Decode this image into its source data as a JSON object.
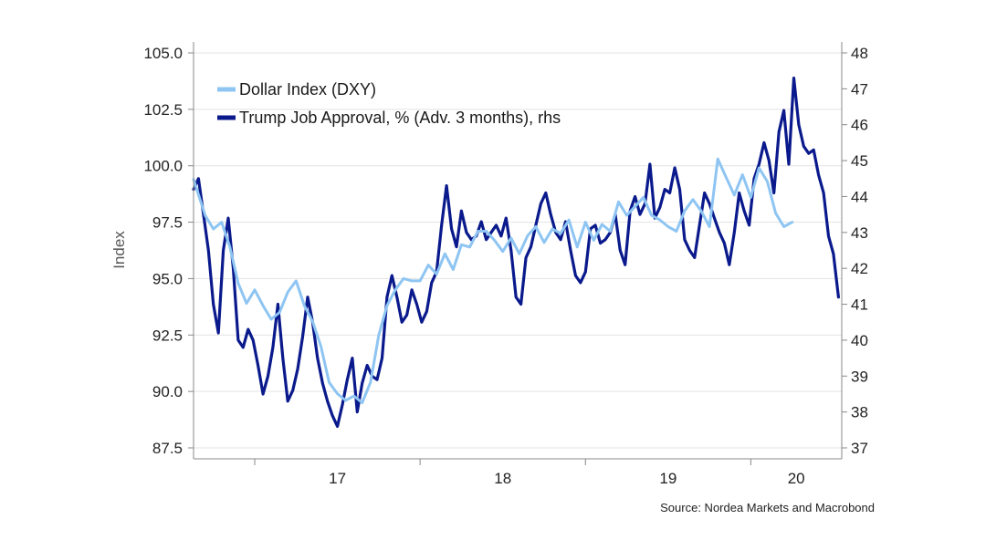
{
  "chart_data": {
    "type": "line",
    "title": "",
    "ylabel": "Index",
    "y2label": "",
    "ylim": [
      87.5,
      105
    ],
    "y_ticks": [
      "105.0",
      "102.5",
      "100.0",
      "97.5",
      "95.0",
      "92.5",
      "90.0",
      "87.5"
    ],
    "y2lim": [
      37,
      48
    ],
    "y2_ticks": [
      "48",
      "47",
      "46",
      "45",
      "44",
      "43",
      "42",
      "41",
      "40",
      "39",
      "38",
      "37"
    ],
    "xlim": [
      2016.63,
      2020.55
    ],
    "x_ticks": [
      "17",
      "18",
      "19",
      "20"
    ],
    "grid": true,
    "legend": "top-left",
    "series": [
      {
        "name": "Dollar Index (DXY)",
        "axis": "left",
        "color": "#8EC5F2",
        "x": [
          2016.63,
          2016.7,
          2016.75,
          2016.8,
          2016.85,
          2016.9,
          2016.95,
          2017.0,
          2017.05,
          2017.1,
          2017.15,
          2017.2,
          2017.25,
          2017.3,
          2017.35,
          2017.4,
          2017.45,
          2017.5,
          2017.55,
          2017.6,
          2017.65,
          2017.7,
          2017.75,
          2017.8,
          2017.85,
          2017.9,
          2017.95,
          2018.0,
          2018.05,
          2018.1,
          2018.15,
          2018.2,
          2018.25,
          2018.3,
          2018.35,
          2018.4,
          2018.45,
          2018.5,
          2018.55,
          2018.6,
          2018.65,
          2018.7,
          2018.75,
          2018.8,
          2018.85,
          2018.9,
          2018.95,
          2019.0,
          2019.05,
          2019.1,
          2019.15,
          2019.2,
          2019.25,
          2019.3,
          2019.35,
          2019.4,
          2019.45,
          2019.5,
          2019.55,
          2019.6,
          2019.65,
          2019.7,
          2019.75,
          2019.8,
          2019.85,
          2019.9,
          2019.95,
          2020.0,
          2020.05,
          2020.1,
          2020.15,
          2020.2,
          2020.25
        ],
        "values": [
          99.4,
          97.8,
          97.2,
          97.5,
          96.4,
          94.8,
          93.9,
          94.5,
          93.8,
          93.2,
          93.5,
          94.4,
          94.9,
          93.8,
          93.1,
          92.0,
          90.4,
          89.9,
          89.6,
          89.8,
          89.5,
          90.4,
          92.5,
          93.8,
          94.5,
          95.0,
          94.9,
          94.9,
          95.6,
          95.2,
          96.1,
          95.4,
          96.5,
          96.4,
          97.1,
          97.1,
          96.7,
          96.2,
          96.8,
          96.1,
          96.9,
          97.3,
          96.6,
          97.2,
          97.0,
          97.6,
          96.4,
          97.5,
          96.7,
          97.4,
          97.1,
          98.4,
          97.8,
          98.2,
          98.6,
          97.8,
          97.6,
          97.3,
          97.1,
          98.0,
          98.5,
          98.0,
          97.3,
          100.3,
          99.5,
          98.7,
          99.6,
          98.6,
          99.9,
          99.3,
          97.9,
          97.3,
          97.5
        ]
      },
      {
        "name": "Trump Job Approval, % (Adv. 3 months), rhs",
        "axis": "right",
        "color": "#0A1A8C",
        "x": [
          2016.63,
          2016.66,
          2016.69,
          2016.72,
          2016.75,
          2016.78,
          2016.81,
          2016.84,
          2016.87,
          2016.9,
          2016.93,
          2016.96,
          2016.99,
          2017.02,
          2017.05,
          2017.08,
          2017.11,
          2017.14,
          2017.17,
          2017.2,
          2017.23,
          2017.26,
          2017.29,
          2017.32,
          2017.35,
          2017.38,
          2017.41,
          2017.44,
          2017.47,
          2017.5,
          2017.53,
          2017.56,
          2017.59,
          2017.62,
          2017.65,
          2017.68,
          2017.71,
          2017.74,
          2017.77,
          2017.8,
          2017.83,
          2017.86,
          2017.89,
          2017.92,
          2017.95,
          2017.98,
          2018.01,
          2018.04,
          2018.07,
          2018.1,
          2018.13,
          2018.16,
          2018.19,
          2018.22,
          2018.25,
          2018.28,
          2018.31,
          2018.34,
          2018.37,
          2018.4,
          2018.43,
          2018.46,
          2018.49,
          2018.52,
          2018.55,
          2018.58,
          2018.61,
          2018.64,
          2018.67,
          2018.7,
          2018.73,
          2018.76,
          2018.79,
          2018.82,
          2018.85,
          2018.88,
          2018.91,
          2018.94,
          2018.97,
          2019.0,
          2019.03,
          2019.06,
          2019.09,
          2019.12,
          2019.15,
          2019.18,
          2019.21,
          2019.24,
          2019.27,
          2019.3,
          2019.33,
          2019.36,
          2019.39,
          2019.42,
          2019.45,
          2019.48,
          2019.51,
          2019.54,
          2019.57,
          2019.6,
          2019.63,
          2019.66,
          2019.69,
          2019.72,
          2019.75,
          2019.78,
          2019.81,
          2019.84,
          2019.87,
          2019.9,
          2019.93,
          2019.96,
          2019.99,
          2020.02,
          2020.05,
          2020.08,
          2020.11,
          2020.14,
          2020.17,
          2020.2,
          2020.23,
          2020.26,
          2020.29,
          2020.32,
          2020.35,
          2020.38,
          2020.41,
          2020.44,
          2020.47,
          2020.5,
          2020.53
        ],
        "values": [
          44.2,
          44.5,
          43.5,
          42.5,
          41.0,
          40.2,
          42.5,
          43.4,
          42.0,
          40.0,
          39.8,
          40.3,
          40.0,
          39.3,
          38.5,
          39.0,
          39.8,
          41.0,
          39.5,
          38.3,
          38.6,
          39.2,
          40.1,
          41.2,
          40.5,
          39.5,
          38.8,
          38.3,
          37.9,
          37.6,
          38.2,
          38.9,
          39.5,
          38.0,
          38.8,
          39.3,
          39.0,
          38.9,
          39.5,
          41.2,
          41.8,
          41.2,
          40.5,
          40.7,
          41.4,
          41.0,
          40.5,
          40.8,
          41.6,
          41.9,
          43.2,
          44.3,
          43.1,
          42.6,
          43.6,
          43.0,
          42.8,
          42.9,
          43.3,
          42.8,
          43.0,
          43.2,
          42.9,
          43.4,
          42.5,
          41.2,
          41.0,
          42.3,
          42.6,
          43.2,
          43.8,
          44.1,
          43.5,
          43.0,
          42.8,
          43.3,
          42.5,
          41.8,
          41.6,
          41.9,
          43.1,
          43.2,
          42.7,
          42.8,
          43.0,
          43.5,
          42.5,
          42.1,
          43.6,
          44.0,
          43.5,
          43.8,
          44.9,
          43.4,
          43.7,
          44.2,
          44.1,
          44.8,
          44.2,
          42.8,
          42.5,
          42.3,
          43.2,
          44.1,
          43.8,
          43.4,
          43.0,
          42.7,
          42.1,
          43.0,
          44.1,
          43.6,
          43.2,
          44.5,
          44.9,
          45.5,
          45.0,
          44.1,
          45.8,
          46.4,
          44.9,
          47.3,
          46.0,
          45.4,
          45.2,
          45.3,
          44.6,
          44.1,
          42.9,
          42.4,
          41.2
        ]
      }
    ]
  },
  "source_note": "Source: Nordea Markets and Macrobond"
}
